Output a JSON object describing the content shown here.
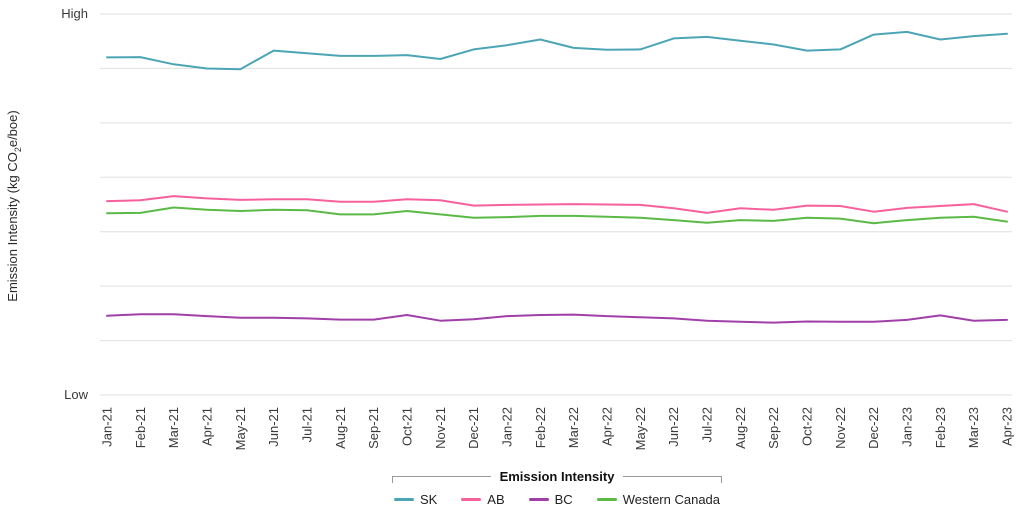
{
  "y_axis": {
    "title_prefix": "Emission Intensity (kg CO",
    "title_sub": "2",
    "title_suffix": "e/boe)",
    "top_label": "High",
    "bottom_label": "Low"
  },
  "legend": {
    "title": "Emission Intensity",
    "items": [
      {
        "label": "SK",
        "color": "#4CA5B5"
      },
      {
        "label": "AB",
        "color": "#F8609D"
      },
      {
        "label": "BC",
        "color": "#A03FA8"
      },
      {
        "label": "Western Canada",
        "color": "#5BBA46"
      }
    ]
  },
  "colors": {
    "gridline": "#E0E0E0",
    "axis_text": "#3A3A3A",
    "legend_frame": "#999999"
  },
  "chart_data": {
    "type": "line",
    "title": "Emission Intensity",
    "xlabel": "",
    "ylabel": "Emission Intensity (kg CO2e/boe)",
    "ylim": [
      0,
      100
    ],
    "value_scale": "qualitative axis: 0 = Low gridline, 100 = High gridline",
    "yticks": [
      {
        "pos": 100,
        "label": "High"
      },
      {
        "pos": 0,
        "label": "Low"
      }
    ],
    "gridlines": 8,
    "grid": "horizontal only",
    "legend_position": "bottom",
    "x": [
      "Jan-21",
      "Feb-21",
      "Mar-21",
      "Apr-21",
      "May-21",
      "Jun-21",
      "Jul-21",
      "Aug-21",
      "Sep-21",
      "Oct-21",
      "Nov-21",
      "Dec-21",
      "Jan-22",
      "Feb-22",
      "Mar-22",
      "Apr-22",
      "May-22",
      "Jun-22",
      "Jul-22",
      "Aug-22",
      "Sep-22",
      "Oct-22",
      "Nov-22",
      "Dec-22",
      "Jan-23",
      "Feb-23",
      "Mar-23",
      "Apr-23"
    ],
    "series": [
      {
        "name": "SK",
        "color": "#4CA5B5",
        "values": [
          88.6,
          88.7,
          86.8,
          85.7,
          85.5,
          90.4,
          89.7,
          89.0,
          89.0,
          89.2,
          88.2,
          90.7,
          91.8,
          93.3,
          91.1,
          90.6,
          90.7,
          93.6,
          94.0,
          93.0,
          92.0,
          90.4,
          90.7,
          94.6,
          95.3,
          93.3,
          94.2,
          94.8
        ]
      },
      {
        "name": "AB",
        "color": "#F8609D",
        "values": [
          50.9,
          51.1,
          52.2,
          51.6,
          51.2,
          51.4,
          51.4,
          50.7,
          50.7,
          51.4,
          51.1,
          49.7,
          49.9,
          50.0,
          50.1,
          50.0,
          49.9,
          49.0,
          47.8,
          49.0,
          48.6,
          49.7,
          49.6,
          48.1,
          49.1,
          49.6,
          50.1,
          48.1
        ]
      },
      {
        "name": "BC",
        "color": "#A03FA8",
        "values": [
          20.8,
          21.2,
          21.2,
          20.7,
          20.3,
          20.3,
          20.1,
          19.8,
          19.8,
          21.0,
          19.5,
          19.9,
          20.7,
          21.0,
          21.1,
          20.7,
          20.4,
          20.1,
          19.5,
          19.2,
          19.0,
          19.3,
          19.2,
          19.2,
          19.7,
          20.9,
          19.5,
          19.7
        ]
      },
      {
        "name": "Western Canada",
        "color": "#5BBA46",
        "values": [
          47.7,
          47.8,
          49.2,
          48.6,
          48.3,
          48.6,
          48.5,
          47.4,
          47.4,
          48.3,
          47.4,
          46.5,
          46.7,
          47.0,
          47.0,
          46.8,
          46.5,
          45.9,
          45.2,
          45.9,
          45.7,
          46.5,
          46.3,
          45.1,
          45.9,
          46.5,
          46.8,
          45.5
        ]
      }
    ]
  }
}
